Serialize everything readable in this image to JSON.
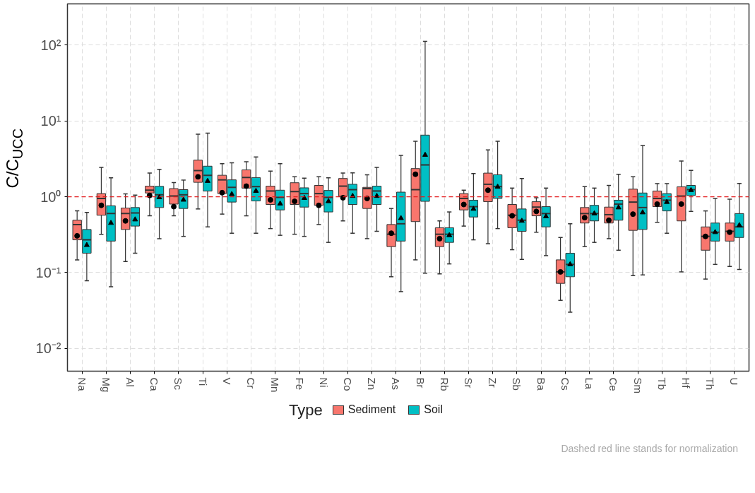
{
  "chart_data": {
    "type": "box",
    "ylabel": "C/C$_{UCC}$",
    "legend_title": "Type",
    "legend": "bottom",
    "grid": true,
    "log": "y",
    "categories": [
      "Na",
      "Mg",
      "Al",
      "Ca",
      "Sc",
      "Ti",
      "V",
      "Cr",
      "Mn",
      "Fe",
      "Ni",
      "Co",
      "Zn",
      "As",
      "Br",
      "Rb",
      "Sr",
      "Zr",
      "Sb",
      "Ba",
      "Cs",
      "La",
      "Ce",
      "Sm",
      "Tb",
      "Hf",
      "Th",
      "U"
    ],
    "ylim": [
      0.005,
      350
    ],
    "yticks": [
      {
        "value": 0.01,
        "label": "10⁻²"
      },
      {
        "value": 0.1,
        "label": "10⁻¹"
      },
      {
        "value": 1,
        "label": "10⁰"
      },
      {
        "value": 10,
        "label": "10¹"
      },
      {
        "value": 100,
        "label": "10²"
      }
    ],
    "ref_lines": [
      {
        "axis": "y",
        "value": 1,
        "color": "#e41a1c",
        "line_style": "dashed"
      }
    ],
    "annotations": [
      "Dashed red line stands for normalization"
    ],
    "series": [
      {
        "name": "Sediment",
        "color": "#f8766d",
        "marker": "circle",
        "boxes": [
          {
            "low": 0.147,
            "q1": 0.27,
            "median": 0.43,
            "q3": 0.49,
            "high": 0.65,
            "mean": 0.305
          },
          {
            "low": 0.32,
            "q1": 0.57,
            "median": 0.95,
            "q3": 1.1,
            "high": 2.44,
            "mean": 0.77
          },
          {
            "low": 0.14,
            "q1": 0.37,
            "median": 0.6,
            "q3": 0.71,
            "high": 1.09,
            "mean": 0.48
          },
          {
            "low": 0.56,
            "q1": 1.12,
            "median": 1.22,
            "q3": 1.38,
            "high": 2.05,
            "mean": 1.04
          },
          {
            "low": 0.56,
            "q1": 0.8,
            "median": 1.02,
            "q3": 1.28,
            "high": 1.54,
            "mean": 0.74
          },
          {
            "low": 0.69,
            "q1": 1.55,
            "median": 2.21,
            "q3": 3.04,
            "high": 6.7,
            "mean": 1.83
          },
          {
            "low": 0.59,
            "q1": 1.1,
            "median": 1.67,
            "q3": 1.92,
            "high": 2.73,
            "mean": 1.13
          },
          {
            "low": 0.56,
            "q1": 1.3,
            "median": 1.8,
            "q3": 2.26,
            "high": 2.9,
            "mean": 1.38
          },
          {
            "low": 0.38,
            "q1": 0.79,
            "median": 1.19,
            "q3": 1.38,
            "high": 2.18,
            "mean": 0.91
          },
          {
            "low": 0.32,
            "q1": 0.79,
            "median": 1.17,
            "q3": 1.53,
            "high": 1.83,
            "mean": 0.87
          },
          {
            "low": 0.43,
            "q1": 0.77,
            "median": 1.1,
            "q3": 1.41,
            "high": 1.83,
            "mean": 0.77
          },
          {
            "low": 0.48,
            "q1": 1.02,
            "median": 1.38,
            "q3": 1.74,
            "high": 2.05,
            "mean": 0.97
          },
          {
            "low": 0.28,
            "q1": 0.7,
            "median": 1.28,
            "q3": 1.33,
            "high": 1.95,
            "mean": 0.95
          },
          {
            "low": 0.088,
            "q1": 0.22,
            "median": 0.32,
            "q3": 0.43,
            "high": 0.7,
            "mean": 0.33
          },
          {
            "low": 0.147,
            "q1": 0.47,
            "median": 1.24,
            "q3": 2.35,
            "high": 5.4,
            "mean": 1.98
          },
          {
            "low": 0.096,
            "q1": 0.22,
            "median": 0.32,
            "q3": 0.39,
            "high": 0.48,
            "mean": 0.28
          },
          {
            "low": 0.41,
            "q1": 0.67,
            "median": 0.95,
            "q3": 1.1,
            "high": 1.22,
            "mean": 0.79
          },
          {
            "low": 0.24,
            "q1": 0.86,
            "median": 1.46,
            "q3": 2.05,
            "high": 4.14,
            "mean": 1.22
          },
          {
            "low": 0.2,
            "q1": 0.39,
            "median": 0.57,
            "q3": 0.79,
            "high": 1.3,
            "mean": 0.56
          },
          {
            "low": 0.34,
            "q1": 0.56,
            "median": 0.73,
            "q3": 0.86,
            "high": 0.97,
            "mean": 0.64
          },
          {
            "low": 0.043,
            "q1": 0.072,
            "median": 0.102,
            "q3": 0.147,
            "high": 0.29,
            "mean": 0.102
          },
          {
            "low": 0.22,
            "q1": 0.45,
            "median": 0.6,
            "q3": 0.72,
            "high": 1.36,
            "mean": 0.53
          },
          {
            "low": 0.28,
            "q1": 0.45,
            "median": 0.58,
            "q3": 0.73,
            "high": 1.41,
            "mean": 0.49
          },
          {
            "low": 0.091,
            "q1": 0.36,
            "median": 0.85,
            "q3": 1.26,
            "high": 1.83,
            "mean": 0.59
          },
          {
            "low": 0.46,
            "q1": 0.74,
            "median": 0.95,
            "q3": 1.19,
            "high": 1.49,
            "mean": 0.8
          },
          {
            "low": 0.102,
            "q1": 0.48,
            "median": 1.02,
            "q3": 1.35,
            "high": 2.95,
            "mean": 0.8
          },
          {
            "low": 0.082,
            "q1": 0.197,
            "median": 0.3,
            "q3": 0.4,
            "high": 0.65,
            "mean": 0.3
          },
          {
            "low": 0.12,
            "q1": 0.26,
            "median": 0.35,
            "q3": 0.45,
            "high": 0.93,
            "mean": 0.34
          }
        ]
      },
      {
        "name": "Soil",
        "color": "#00bfc4",
        "marker": "triangle",
        "boxes": [
          {
            "low": 0.078,
            "q1": 0.18,
            "median": 0.27,
            "q3": 0.37,
            "high": 0.62,
            "mean": 0.23
          },
          {
            "low": 0.065,
            "q1": 0.26,
            "median": 0.6,
            "q3": 0.76,
            "high": 1.78,
            "mean": 0.45
          },
          {
            "low": 0.18,
            "q1": 0.41,
            "median": 0.61,
            "q3": 0.72,
            "high": 1.05,
            "mean": 0.5
          },
          {
            "low": 0.28,
            "q1": 0.72,
            "median": 1.06,
            "q3": 1.37,
            "high": 2.3,
            "mean": 0.98
          },
          {
            "low": 0.3,
            "q1": 0.7,
            "median": 1.06,
            "q3": 1.24,
            "high": 1.66,
            "mean": 0.91
          },
          {
            "low": 0.4,
            "q1": 1.19,
            "median": 1.92,
            "q3": 2.53,
            "high": 6.9,
            "mean": 1.61
          },
          {
            "low": 0.33,
            "q1": 0.85,
            "median": 1.33,
            "q3": 1.67,
            "high": 2.8,
            "mean": 1.08
          },
          {
            "low": 0.33,
            "q1": 0.88,
            "median": 1.36,
            "q3": 1.79,
            "high": 3.35,
            "mean": 1.19
          },
          {
            "low": 0.31,
            "q1": 0.67,
            "median": 0.98,
            "q3": 1.22,
            "high": 2.73,
            "mean": 0.81
          },
          {
            "low": 0.3,
            "q1": 0.73,
            "median": 1.1,
            "q3": 1.31,
            "high": 1.76,
            "mean": 0.96
          },
          {
            "low": 0.25,
            "q1": 0.63,
            "median": 0.98,
            "q3": 1.21,
            "high": 1.78,
            "mean": 0.87
          },
          {
            "low": 0.33,
            "q1": 0.79,
            "median": 1.24,
            "q3": 1.46,
            "high": 2.07,
            "mean": 1.02
          },
          {
            "low": 0.35,
            "q1": 0.79,
            "median": 1.19,
            "q3": 1.38,
            "high": 2.44,
            "mean": 1.02
          },
          {
            "low": 0.056,
            "q1": 0.26,
            "median": 0.44,
            "q3": 1.15,
            "high": 3.51,
            "mean": 0.52
          },
          {
            "low": 0.098,
            "q1": 0.87,
            "median": 2.63,
            "q3": 6.5,
            "high": 112,
            "mean": 3.56
          },
          {
            "low": 0.13,
            "q1": 0.25,
            "median": 0.32,
            "q3": 0.39,
            "high": 0.63,
            "mean": 0.31
          },
          {
            "low": 0.27,
            "q1": 0.54,
            "median": 0.74,
            "q3": 0.9,
            "high": 2.02,
            "mean": 0.69
          },
          {
            "low": 0.38,
            "q1": 0.95,
            "median": 1.36,
            "q3": 1.95,
            "high": 5.4,
            "mean": 1.35
          },
          {
            "low": 0.149,
            "q1": 0.35,
            "median": 0.49,
            "q3": 0.69,
            "high": 1.74,
            "mean": 0.48
          },
          {
            "low": 0.167,
            "q1": 0.4,
            "median": 0.6,
            "q3": 0.74,
            "high": 1.3,
            "mean": 0.55
          },
          {
            "low": 0.03,
            "q1": 0.088,
            "median": 0.128,
            "q3": 0.18,
            "high": 0.44,
            "mean": 0.128
          },
          {
            "low": 0.25,
            "q1": 0.48,
            "median": 0.6,
            "q3": 0.77,
            "high": 1.3,
            "mean": 0.6
          },
          {
            "low": 0.197,
            "q1": 0.49,
            "median": 0.8,
            "q3": 0.9,
            "high": 1.98,
            "mean": 0.72
          },
          {
            "low": 0.093,
            "q1": 0.37,
            "median": 0.72,
            "q3": 1.12,
            "high": 4.75,
            "mean": 0.62
          },
          {
            "low": 0.33,
            "q1": 0.65,
            "median": 0.9,
            "q3": 1.1,
            "high": 1.49,
            "mean": 0.85
          },
          {
            "low": 0.64,
            "q1": 1.04,
            "median": 1.24,
            "q3": 1.41,
            "high": 2.23,
            "mean": 1.22
          },
          {
            "low": 0.128,
            "q1": 0.26,
            "median": 0.34,
            "q3": 0.45,
            "high": 0.95,
            "mean": 0.34
          },
          {
            "low": 0.11,
            "q1": 0.29,
            "median": 0.4,
            "q3": 0.6,
            "high": 1.5,
            "mean": 0.42
          }
        ]
      }
    ]
  }
}
